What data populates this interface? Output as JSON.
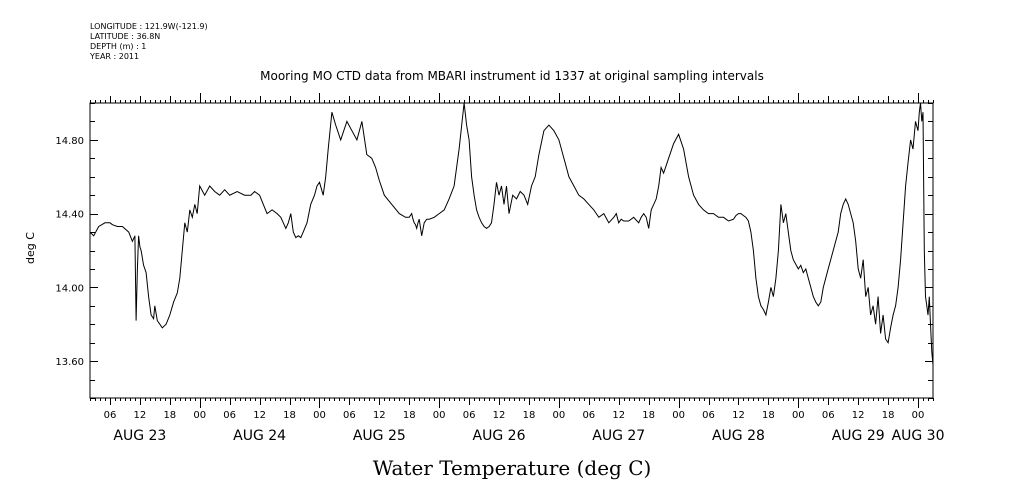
{
  "meta_lines": [
    "LONGITUDE : 121.9W(-121.9)",
    "LATITUDE : 36.8N",
    "DEPTH (m) : 1",
    "YEAR : 2011"
  ],
  "chart_data": {
    "type": "line",
    "title": "Mooring MO CTD data from MBARI instrument id 1337 at original sampling intervals",
    "xlabel": "Water Temperature (deg C)",
    "ylabel": "deg C",
    "x_unit": "hours",
    "xlim": [
      "2011-08-23T02:00",
      "2011-08-30T03:00"
    ],
    "ylim": [
      13.4,
      15.0
    ],
    "y_ticks": [
      13.6,
      14.0,
      14.4,
      14.8
    ],
    "y_tick_labels": [
      "13.60",
      "14.00",
      "14.40",
      "14.80"
    ],
    "x_hour_ticks": [
      {
        "x": "2011-08-23T06:00",
        "label": "06"
      },
      {
        "x": "2011-08-23T12:00",
        "label": "12"
      },
      {
        "x": "2011-08-23T18:00",
        "label": "18"
      },
      {
        "x": "2011-08-24T00:00",
        "label": "00"
      },
      {
        "x": "2011-08-24T06:00",
        "label": "06"
      },
      {
        "x": "2011-08-24T12:00",
        "label": "12"
      },
      {
        "x": "2011-08-24T18:00",
        "label": "18"
      },
      {
        "x": "2011-08-25T00:00",
        "label": "00"
      },
      {
        "x": "2011-08-25T06:00",
        "label": "06"
      },
      {
        "x": "2011-08-25T12:00",
        "label": "12"
      },
      {
        "x": "2011-08-25T18:00",
        "label": "18"
      },
      {
        "x": "2011-08-26T00:00",
        "label": "00"
      },
      {
        "x": "2011-08-26T06:00",
        "label": "06"
      },
      {
        "x": "2011-08-26T12:00",
        "label": "12"
      },
      {
        "x": "2011-08-26T18:00",
        "label": "18"
      },
      {
        "x": "2011-08-27T00:00",
        "label": "00"
      },
      {
        "x": "2011-08-27T06:00",
        "label": "06"
      },
      {
        "x": "2011-08-27T12:00",
        "label": "12"
      },
      {
        "x": "2011-08-27T18:00",
        "label": "18"
      },
      {
        "x": "2011-08-28T00:00",
        "label": "00"
      },
      {
        "x": "2011-08-28T06:00",
        "label": "06"
      },
      {
        "x": "2011-08-28T12:00",
        "label": "12"
      },
      {
        "x": "2011-08-28T18:00",
        "label": "18"
      },
      {
        "x": "2011-08-29T00:00",
        "label": "00"
      },
      {
        "x": "2011-08-29T06:00",
        "label": "06"
      },
      {
        "x": "2011-08-29T12:00",
        "label": "12"
      },
      {
        "x": "2011-08-29T18:00",
        "label": "18"
      },
      {
        "x": "2011-08-30T00:00",
        "label": "00"
      }
    ],
    "x_day_labels": [
      {
        "x": "2011-08-23T12:00",
        "label": "AUG 23"
      },
      {
        "x": "2011-08-24T12:00",
        "label": "AUG 24"
      },
      {
        "x": "2011-08-25T12:00",
        "label": "AUG 25"
      },
      {
        "x": "2011-08-26T12:00",
        "label": "AUG 26"
      },
      {
        "x": "2011-08-27T12:00",
        "label": "AUG 27"
      },
      {
        "x": "2011-08-28T12:00",
        "label": "AUG 28"
      },
      {
        "x": "2011-08-29T12:00",
        "label": "AUG 29"
      },
      {
        "x": "2011-08-30T00:00",
        "label": "AUG 30"
      }
    ],
    "grid": false,
    "series": [
      {
        "x": [
          "2011-08-23T02:00",
          "2011-08-23T02:45",
          "2011-08-23T03:45",
          "2011-08-23T05:00",
          "2011-08-23T06:00",
          "2011-08-23T06:30",
          "2011-08-23T07:30",
          "2011-08-23T08:30",
          "2011-08-23T09:45",
          "2011-08-23T10:30",
          "2011-08-23T11:00",
          "2011-08-23T11:15",
          "2011-08-23T11:30",
          "2011-08-23T11:45",
          "2011-08-23T12:00",
          "2011-08-23T12:15",
          "2011-08-23T12:45",
          "2011-08-23T13:15",
          "2011-08-23T13:45",
          "2011-08-23T14:15",
          "2011-08-23T14:45",
          "2011-08-23T15:00",
          "2011-08-23T15:30",
          "2011-08-23T16:00",
          "2011-08-23T16:30",
          "2011-08-23T17:15",
          "2011-08-23T18:00",
          "2011-08-23T18:45",
          "2011-08-23T19:30",
          "2011-08-23T20:00",
          "2011-08-23T20:30",
          "2011-08-23T21:00",
          "2011-08-23T21:30",
          "2011-08-23T22:00",
          "2011-08-23T22:30",
          "2011-08-23T23:00",
          "2011-08-23T23:30",
          "2011-08-24T00:00",
          "2011-08-24T01:00",
          "2011-08-24T02:00",
          "2011-08-24T03:00",
          "2011-08-24T04:00",
          "2011-08-24T05:00",
          "2011-08-24T06:00",
          "2011-08-24T07:30",
          "2011-08-24T09:00",
          "2011-08-24T10:15",
          "2011-08-24T11:00",
          "2011-08-24T12:00",
          "2011-08-24T12:45",
          "2011-08-24T13:30",
          "2011-08-24T14:30",
          "2011-08-24T15:30",
          "2011-08-24T16:15",
          "2011-08-24T16:45",
          "2011-08-24T17:15",
          "2011-08-24T17:45",
          "2011-08-24T18:15",
          "2011-08-24T18:45",
          "2011-08-24T19:15",
          "2011-08-24T19:45",
          "2011-08-24T20:15",
          "2011-08-24T20:45",
          "2011-08-24T21:30",
          "2011-08-24T22:15",
          "2011-08-24T23:00",
          "2011-08-24T23:30",
          "2011-08-25T00:00",
          "2011-08-25T00:45",
          "2011-08-25T01:15",
          "2011-08-25T01:45",
          "2011-08-25T02:30",
          "2011-08-25T03:15",
          "2011-08-25T04:15",
          "2011-08-25T05:30",
          "2011-08-25T06:30",
          "2011-08-25T07:30",
          "2011-08-25T08:30",
          "2011-08-25T09:30",
          "2011-08-25T10:30",
          "2011-08-25T11:15",
          "2011-08-25T12:00",
          "2011-08-25T13:00",
          "2011-08-25T14:30",
          "2011-08-25T16:00",
          "2011-08-25T17:15",
          "2011-08-25T18:00",
          "2011-08-25T18:30",
          "2011-08-25T18:45",
          "2011-08-25T19:00",
          "2011-08-25T19:15",
          "2011-08-25T19:30",
          "2011-08-25T19:45",
          "2011-08-25T20:00",
          "2011-08-25T20:30",
          "2011-08-25T21:00",
          "2011-08-25T21:30",
          "2011-08-25T22:00",
          "2011-08-25T23:00",
          "2011-08-26T00:00",
          "2011-08-26T01:00",
          "2011-08-26T02:00",
          "2011-08-26T03:00",
          "2011-08-26T04:00",
          "2011-08-26T05:00",
          "2011-08-26T05:30",
          "2011-08-26T06:00",
          "2011-08-26T06:30",
          "2011-08-26T07:00",
          "2011-08-26T07:30",
          "2011-08-26T08:00",
          "2011-08-26T08:30",
          "2011-08-26T09:00",
          "2011-08-26T09:30",
          "2011-08-26T10:00",
          "2011-08-26T10:30",
          "2011-08-26T11:00",
          "2011-08-26T11:30",
          "2011-08-26T12:00",
          "2011-08-26T12:30",
          "2011-08-26T13:00",
          "2011-08-26T13:30",
          "2011-08-26T14:00",
          "2011-08-26T14:45",
          "2011-08-26T15:30",
          "2011-08-26T16:15",
          "2011-08-26T17:00",
          "2011-08-26T17:45",
          "2011-08-26T18:30",
          "2011-08-26T19:15",
          "2011-08-26T20:00",
          "2011-08-26T21:00",
          "2011-08-26T22:00",
          "2011-08-26T23:00",
          "2011-08-27T00:00",
          "2011-08-27T01:00",
          "2011-08-27T02:00",
          "2011-08-27T03:00",
          "2011-08-27T04:00",
          "2011-08-27T05:00",
          "2011-08-27T06:00",
          "2011-08-27T07:00",
          "2011-08-27T08:00",
          "2011-08-27T09:00",
          "2011-08-27T10:00",
          "2011-08-27T11:00",
          "2011-08-27T11:30",
          "2011-08-27T12:00",
          "2011-08-27T12:30",
          "2011-08-27T13:00",
          "2011-08-27T14:00",
          "2011-08-27T15:00",
          "2011-08-27T16:00",
          "2011-08-27T16:30",
          "2011-08-27T17:00",
          "2011-08-27T17:30",
          "2011-08-27T18:00",
          "2011-08-27T18:30",
          "2011-08-27T19:00",
          "2011-08-27T19:30",
          "2011-08-27T20:00",
          "2011-08-27T20:30",
          "2011-08-27T21:00",
          "2011-08-27T22:00",
          "2011-08-27T23:00",
          "2011-08-28T00:00",
          "2011-08-28T01:00",
          "2011-08-28T02:00",
          "2011-08-28T03:00",
          "2011-08-28T04:00",
          "2011-08-28T05:00",
          "2011-08-28T06:00",
          "2011-08-28T07:00",
          "2011-08-28T08:00",
          "2011-08-28T09:00",
          "2011-08-28T10:00",
          "2011-08-28T11:00",
          "2011-08-28T11:30",
          "2011-08-28T12:00",
          "2011-08-28T12:30",
          "2011-08-28T13:00",
          "2011-08-28T13:30",
          "2011-08-28T14:00",
          "2011-08-28T14:30",
          "2011-08-28T15:00",
          "2011-08-28T15:30",
          "2011-08-28T16:00",
          "2011-08-28T16:30",
          "2011-08-28T17:00",
          "2011-08-28T17:30",
          "2011-08-28T18:00",
          "2011-08-28T18:30",
          "2011-08-28T19:00",
          "2011-08-28T19:30",
          "2011-08-28T20:00",
          "2011-08-28T20:30",
          "2011-08-28T21:00",
          "2011-08-28T21:30",
          "2011-08-28T22:00",
          "2011-08-28T22:30",
          "2011-08-28T23:00",
          "2011-08-29T00:00",
          "2011-08-29T00:30",
          "2011-08-29T01:00",
          "2011-08-29T01:30",
          "2011-08-29T02:00",
          "2011-08-29T02:30",
          "2011-08-29T03:00",
          "2011-08-29T03:30",
          "2011-08-29T04:00",
          "2011-08-29T04:30",
          "2011-08-29T05:00",
          "2011-08-29T06:00",
          "2011-08-29T07:00",
          "2011-08-29T07:30",
          "2011-08-29T08:00",
          "2011-08-29T08:30",
          "2011-08-29T09:00",
          "2011-08-29T09:30",
          "2011-08-29T10:00",
          "2011-08-29T10:30",
          "2011-08-29T11:00",
          "2011-08-29T11:30",
          "2011-08-29T12:00",
          "2011-08-29T12:30",
          "2011-08-29T13:00",
          "2011-08-29T13:30",
          "2011-08-29T14:00",
          "2011-08-29T14:30",
          "2011-08-29T15:00",
          "2011-08-29T15:30",
          "2011-08-29T16:00",
          "2011-08-29T16:30",
          "2011-08-29T17:00",
          "2011-08-29T17:30",
          "2011-08-29T18:00",
          "2011-08-29T18:30",
          "2011-08-29T19:00",
          "2011-08-29T19:30",
          "2011-08-29T20:00",
          "2011-08-29T20:30",
          "2011-08-29T21:00",
          "2011-08-29T21:30",
          "2011-08-29T22:00",
          "2011-08-29T22:30",
          "2011-08-29T23:00",
          "2011-08-29T23:30",
          "2011-08-30T00:00",
          "2011-08-30T00:15",
          "2011-08-30T00:30",
          "2011-08-30T00:45",
          "2011-08-30T01:00",
          "2011-08-30T01:15",
          "2011-08-30T01:30",
          "2011-08-30T01:45",
          "2011-08-30T02:00",
          "2011-08-30T02:15",
          "2011-08-30T02:30",
          "2011-08-30T02:45",
          "2011-08-30T03:00"
        ],
        "y": [
          14.3,
          14.28,
          14.33,
          14.35,
          14.35,
          14.34,
          14.33,
          14.33,
          14.3,
          14.25,
          14.28,
          13.82,
          14.1,
          14.28,
          14.22,
          14.2,
          14.12,
          14.08,
          13.95,
          13.85,
          13.83,
          13.9,
          13.82,
          13.8,
          13.78,
          13.8,
          13.85,
          13.92,
          13.97,
          14.05,
          14.2,
          14.35,
          14.3,
          14.42,
          14.38,
          14.45,
          14.4,
          14.55,
          14.5,
          14.55,
          14.52,
          14.5,
          14.53,
          14.5,
          14.52,
          14.5,
          14.5,
          14.52,
          14.5,
          14.45,
          14.4,
          14.42,
          14.4,
          14.38,
          14.35,
          14.32,
          14.35,
          14.4,
          14.3,
          14.27,
          14.28,
          14.27,
          14.3,
          14.35,
          14.45,
          14.5,
          14.55,
          14.57,
          14.5,
          14.6,
          14.75,
          14.95,
          14.88,
          14.8,
          14.9,
          14.85,
          14.8,
          14.9,
          14.72,
          14.7,
          14.65,
          14.58,
          14.5,
          14.45,
          14.4,
          14.38,
          14.38,
          14.4,
          14.37,
          14.35,
          14.34,
          14.32,
          14.35,
          14.37,
          14.28,
          14.35,
          14.37,
          14.37,
          14.38,
          14.4,
          14.42,
          14.48,
          14.55,
          14.75,
          15.0,
          14.88,
          14.8,
          14.6,
          14.5,
          14.42,
          14.38,
          14.35,
          14.33,
          14.32,
          14.33,
          14.35,
          14.45,
          14.57,
          14.5,
          14.55,
          14.45,
          14.55,
          14.4,
          14.5,
          14.48,
          14.52,
          14.5,
          14.45,
          14.55,
          14.6,
          14.72,
          14.85,
          14.88,
          14.85,
          14.8,
          14.7,
          14.6,
          14.55,
          14.5,
          14.48,
          14.45,
          14.42,
          14.38,
          14.4,
          14.35,
          14.38,
          14.4,
          14.35,
          14.37,
          14.36,
          14.36,
          14.38,
          14.35,
          14.38,
          14.4,
          14.38,
          14.32,
          14.42,
          14.45,
          14.48,
          14.55,
          14.65,
          14.62,
          14.7,
          14.78,
          14.83,
          14.75,
          14.6,
          14.5,
          14.45,
          14.42,
          14.4,
          14.4,
          14.38,
          14.38,
          14.36,
          14.37,
          14.39,
          14.4,
          14.4,
          14.39,
          14.38,
          14.36,
          14.3,
          14.2,
          14.05,
          13.95,
          13.9,
          13.88,
          13.85,
          13.92,
          14.0,
          13.95,
          14.05,
          14.2,
          14.45,
          14.35,
          14.4,
          14.3,
          14.2,
          14.15,
          14.1,
          14.12,
          14.08,
          14.1,
          14.05,
          14.0,
          13.95,
          13.92,
          13.9,
          13.92,
          14.0,
          14.1,
          14.2,
          14.25,
          14.3,
          14.4,
          14.45,
          14.48,
          14.45,
          14.4,
          14.35,
          14.25,
          14.1,
          14.05,
          14.15,
          13.95,
          14.0,
          13.85,
          13.9,
          13.8,
          13.95,
          13.75,
          13.85,
          13.72,
          13.7,
          13.78,
          13.85,
          13.9,
          14.0,
          14.15,
          14.35,
          14.55,
          14.68,
          14.8,
          14.75,
          14.9,
          14.85,
          14.95,
          15.0,
          14.9,
          14.95,
          14.2,
          13.95,
          13.9,
          13.85,
          13.95,
          13.8,
          13.65,
          13.58
        ]
      }
    ]
  }
}
